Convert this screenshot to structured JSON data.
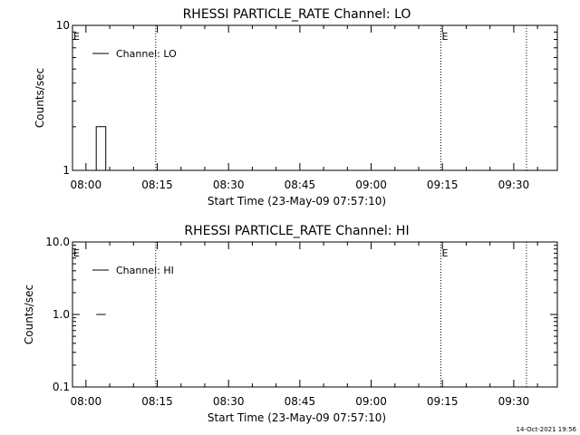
{
  "footer_timestamp": "14-Oct-2021 19:56",
  "chart_data": [
    {
      "type": "line",
      "title": "RHESSI PARTICLE_RATE Channel: LO",
      "xlabel": "Start Time (23-May-09 07:57:10)",
      "ylabel": "Counts/sec",
      "yscale": "log",
      "x_unit": "minutes since 07:57:10",
      "xlim": [
        0,
        102
      ],
      "ylim": [
        1,
        10
      ],
      "xticks": [
        {
          "label": "08:00",
          "value": 2.83
        },
        {
          "label": "08:15",
          "value": 17.83
        },
        {
          "label": "08:30",
          "value": 32.83
        },
        {
          "label": "08:45",
          "value": 47.83
        },
        {
          "label": "09:00",
          "value": 62.83
        },
        {
          "label": "09:15",
          "value": 77.83
        },
        {
          "label": "09:30",
          "value": 92.83
        }
      ],
      "yticks": [
        {
          "label": "1",
          "value": 1
        },
        {
          "label": "10",
          "value": 10
        }
      ],
      "vlines": [
        {
          "x": 17.5,
          "label": ""
        },
        {
          "x": 77.5,
          "label": "E"
        },
        {
          "x": 95.5,
          "label": ""
        }
      ],
      "left_marker": "E",
      "legend": {
        "position": "top-left",
        "entries": [
          "Channel: LO"
        ]
      },
      "series": [
        {
          "name": "Channel: LO",
          "style": "steps",
          "points": [
            [
              5,
              1
            ],
            [
              5,
              2
            ],
            [
              7,
              2
            ],
            [
              7,
              1
            ]
          ]
        }
      ]
    },
    {
      "type": "line",
      "title": "RHESSI PARTICLE_RATE Channel: HI",
      "xlabel": "Start Time (23-May-09 07:57:10)",
      "ylabel": "Counts/sec",
      "yscale": "log",
      "x_unit": "minutes since 07:57:10",
      "xlim": [
        0,
        102
      ],
      "ylim": [
        0.1,
        10
      ],
      "xticks": [
        {
          "label": "08:00",
          "value": 2.83
        },
        {
          "label": "08:15",
          "value": 17.83
        },
        {
          "label": "08:30",
          "value": 32.83
        },
        {
          "label": "08:45",
          "value": 47.83
        },
        {
          "label": "09:00",
          "value": 62.83
        },
        {
          "label": "09:15",
          "value": 77.83
        },
        {
          "label": "09:30",
          "value": 92.83
        }
      ],
      "yticks": [
        {
          "label": "0.1",
          "value": 0.1
        },
        {
          "label": "1.0",
          "value": 1
        },
        {
          "label": "10.0",
          "value": 10
        }
      ],
      "vlines": [
        {
          "x": 17.5,
          "label": ""
        },
        {
          "x": 77.5,
          "label": "E"
        },
        {
          "x": 95.5,
          "label": ""
        }
      ],
      "left_marker": "E",
      "legend": {
        "position": "top-left",
        "entries": [
          "Channel: HI"
        ]
      },
      "series": [
        {
          "name": "Channel: HI",
          "style": "line",
          "points": [
            [
              5,
              1
            ],
            [
              7,
              1
            ]
          ]
        }
      ]
    }
  ]
}
